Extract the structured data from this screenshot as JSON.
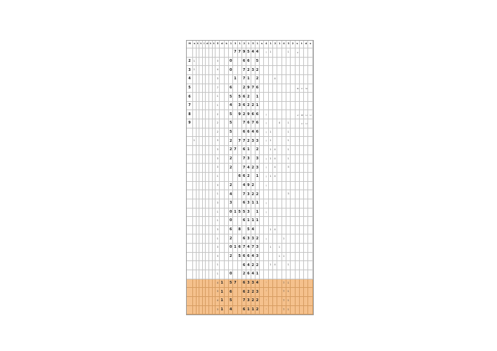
{
  "colors": {
    "highlight_row": "#f5c18d",
    "gridline": "#c4c4c4",
    "gridline_highlight": "#d79d62",
    "outer_border": "#9a9a9a",
    "background": "#ffffff"
  },
  "table": {
    "column_count": 30,
    "row_count": 30,
    "header": [
      "M",
      "s",
      "t",
      "t",
      "l",
      "d",
      "t",
      "t",
      "5",
      "d",
      "k",
      "1",
      "3",
      "1",
      "2",
      "1",
      "5",
      "1",
      "s",
      "4",
      "1",
      "2",
      "1",
      "4",
      "3",
      "2",
      "s",
      "t",
      "d",
      "s"
    ],
    "rows": [
      {
        "highlight": false,
        "cells": {
          "12": "7",
          "13": "7",
          "14": "9",
          "15": "5",
          "16": "4",
          "17": "4",
          "19": "¡",
          "20": "1",
          "24": "1",
          "26": "s"
        }
      },
      {
        "highlight": false,
        "cells": {
          "0": "2",
          "1": "1",
          "8": "3",
          "11": "0",
          "14": "6",
          "15": "6",
          "17": "5"
        }
      },
      {
        "highlight": false,
        "cells": {
          "0": "3",
          "1": "1",
          "8": "4",
          "11": "0",
          "14": "7",
          "15": "2",
          "16": "3",
          "17": "2"
        }
      },
      {
        "highlight": false,
        "cells": {
          "0": "4",
          "8": "3",
          "12": "1",
          "14": "7",
          "15": "1",
          "17": "2",
          "21": "4"
        }
      },
      {
        "highlight": false,
        "cells": {
          "0": "5",
          "8": "7",
          "11": "6",
          "14": "2",
          "15": "9",
          "16": "7",
          "17": "6",
          "26": "4",
          "27": "1",
          "28": "3"
        }
      },
      {
        "highlight": false,
        "cells": {
          "0": "6",
          "8": "1",
          "11": "5",
          "13": "5",
          "14": "6",
          "15": "2",
          "17": "1"
        }
      },
      {
        "highlight": false,
        "cells": {
          "0": "7",
          "8": "1",
          "11": "4",
          "13": "3",
          "14": "6",
          "15": "2",
          "16": "2",
          "17": "1"
        }
      },
      {
        "highlight": false,
        "cells": {
          "0": "8",
          "8": "2",
          "11": "5",
          "13": "9",
          "14": "2",
          "15": "9",
          "16": "6",
          "17": "6",
          "19": "¡",
          "26": "1",
          "27": "8",
          "28": "1",
          "29": "1"
        }
      },
      {
        "highlight": false,
        "cells": {
          "0": "9",
          "8": "2",
          "11": "5",
          "14": "7",
          "15": "6",
          "16": "7",
          "17": "6",
          "19": "¡",
          "22": "4",
          "24": "1",
          "27": "1",
          "28": "1"
        }
      },
      {
        "highlight": false,
        "cells": {
          "8": "2",
          "11": "5",
          "14": "6",
          "15": "6",
          "16": "4",
          "17": "6",
          "19": "¡",
          "20": "1",
          "24": "1"
        }
      },
      {
        "highlight": false,
        "cells": {
          "1": "1",
          "8": "3",
          "11": "2",
          "13": "7",
          "14": "7",
          "15": "2",
          "16": "3",
          "17": "3",
          "19": "¡",
          "20": "1",
          "24": "1"
        }
      },
      {
        "highlight": false,
        "cells": {
          "8": "3",
          "11": "2",
          "12": "7",
          "14": "6",
          "15": "1",
          "17": "2",
          "20": "1",
          "21": "4",
          "24": "1"
        }
      },
      {
        "highlight": false,
        "cells": {
          "8": "3",
          "11": "2",
          "14": "7",
          "15": "3",
          "17": "3",
          "19": "¡",
          "20": "1",
          "21": "4",
          "24": "1"
        }
      },
      {
        "highlight": false,
        "cells": {
          "8": "3",
          "11": "2",
          "14": "7",
          "15": "4",
          "16": "2",
          "17": "3",
          "19": "¡",
          "21": "4",
          "24": "3"
        }
      },
      {
        "highlight": false,
        "cells": {
          "8": "1",
          "13": "6",
          "14": "6",
          "15": "2",
          "17": "1",
          "19": "¡",
          "20": "1",
          "21": "4"
        }
      },
      {
        "highlight": false,
        "cells": {
          "8": "3",
          "11": "2",
          "14": "4",
          "15": "9",
          "16": "2",
          "19": "¡"
        }
      },
      {
        "highlight": false,
        "cells": {
          "8": "1",
          "11": "4",
          "14": "7",
          "15": "3",
          "16": "2",
          "17": "2",
          "24": "3"
        }
      },
      {
        "highlight": false,
        "cells": {
          "8": "3",
          "11": "3",
          "14": "6",
          "15": "3",
          "16": "1",
          "17": "1",
          "19": "¡"
        }
      },
      {
        "highlight": false,
        "cells": {
          "8": "1",
          "11": "0",
          "12": "1",
          "13": "5",
          "14": "5",
          "15": "3",
          "17": "1",
          "19": "¡"
        }
      },
      {
        "highlight": false,
        "cells": {
          "8": "1",
          "11": "0",
          "14": "6",
          "15": "1",
          "16": "1",
          "17": "1"
        }
      },
      {
        "highlight": false,
        "cells": {
          "8": "3",
          "11": "6",
          "13": "8",
          "15": "5",
          "16": "4",
          "20": "1",
          "21": "4"
        }
      },
      {
        "highlight": false,
        "cells": {
          "8": "1",
          "11": "2",
          "14": "6",
          "15": "3",
          "16": "3",
          "17": "2",
          "19": "¡",
          "23": "1"
        }
      },
      {
        "highlight": false,
        "cells": {
          "8": "3",
          "11": "0",
          "12": "1",
          "13": "6",
          "14": "7",
          "15": "4",
          "16": "7",
          "17": "3",
          "20": "1",
          "22": "1"
        }
      },
      {
        "highlight": false,
        "cells": {
          "8": "3",
          "11": "2",
          "13": "5",
          "14": "6",
          "15": "6",
          "16": "4",
          "17": "3",
          "22": "1",
          "23": "1"
        }
      },
      {
        "highlight": false,
        "cells": {
          "8": "1",
          "14": "6",
          "15": "4",
          "16": "2",
          "17": "2",
          "20": "1",
          "21": "4",
          "24": "1"
        }
      },
      {
        "highlight": false,
        "cells": {
          "8": "1",
          "11": "0",
          "14": "2",
          "15": "6",
          "16": "4",
          "17": "1"
        }
      },
      {
        "highlight": true,
        "cells": {
          "8": "4",
          "9": "1",
          "11": "5",
          "12": "7",
          "14": "6",
          "15": "3",
          "16": "3",
          "17": "4",
          "19": "'",
          "23": "7",
          "24": "1"
        }
      },
      {
        "highlight": true,
        "cells": {
          "8": "3",
          "9": "1",
          "11": "6",
          "14": "6",
          "15": "2",
          "16": "2",
          "17": "3",
          "19": "'",
          "23": "7",
          "24": "1"
        }
      },
      {
        "highlight": true,
        "cells": {
          "8": "4",
          "9": "1",
          "11": "5",
          "14": "7",
          "15": "3",
          "16": "2",
          "17": "2",
          "19": "'",
          "23": "7",
          "24": "1"
        }
      },
      {
        "highlight": true,
        "cells": {
          "8": "3",
          "9": "1",
          "11": "4",
          "14": "6",
          "15": "1",
          "16": "1",
          "17": "2",
          "19": "'",
          "23": "7",
          "24": "1"
        }
      }
    ]
  }
}
